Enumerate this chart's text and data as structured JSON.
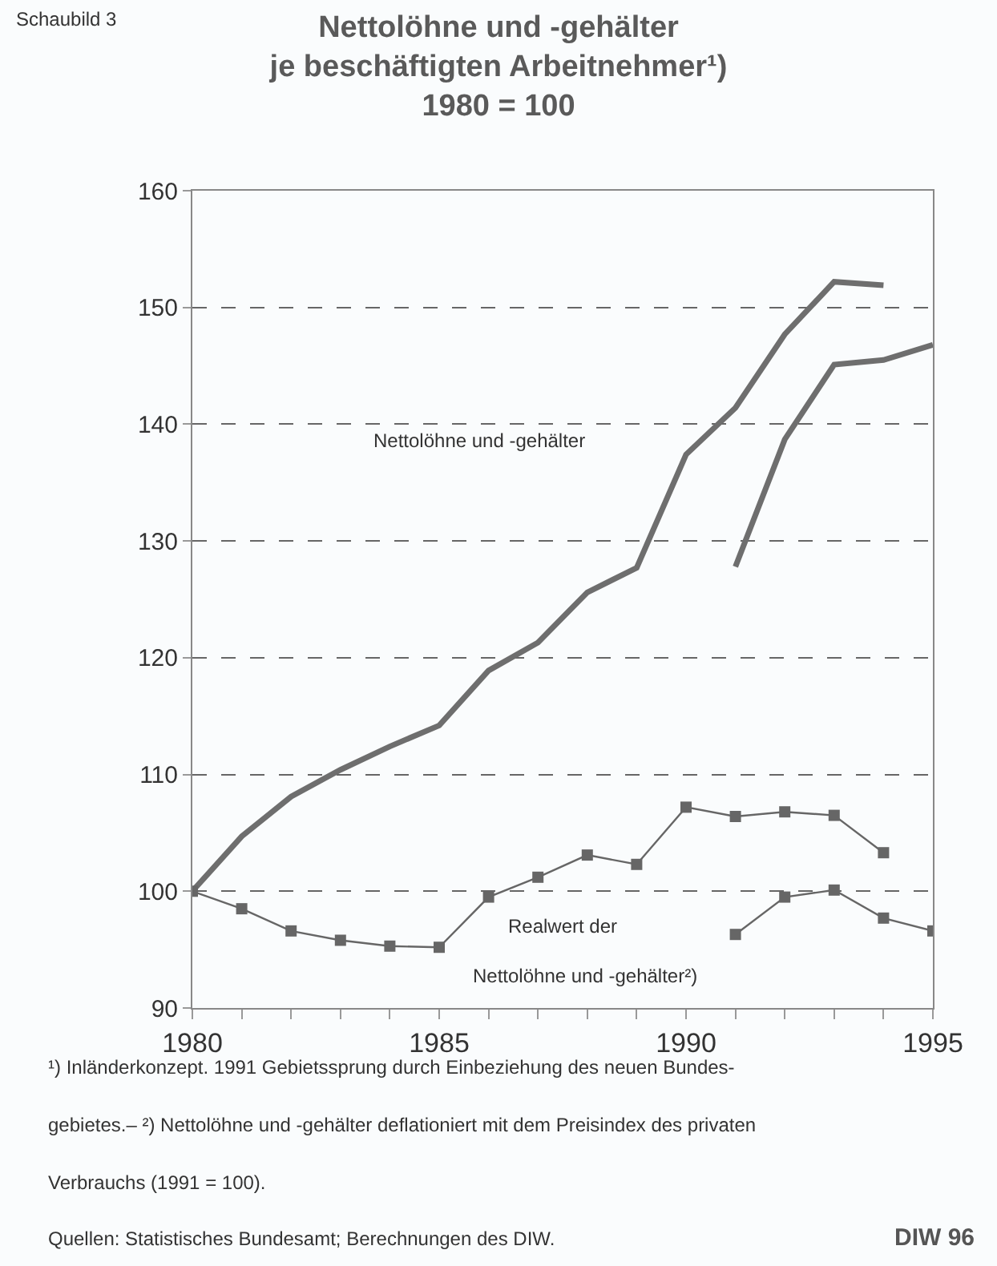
{
  "chart_data": {
    "type": "line",
    "title": "Nettolöhne und -gehälter\nje beschäftigten Arbeitnehmer¹)\n1980 = 100",
    "x": [
      1980,
      1981,
      1982,
      1983,
      1984,
      1985,
      1986,
      1987,
      1988,
      1989,
      1990,
      1991,
      1992,
      1993,
      1994,
      1995
    ],
    "series": [
      {
        "color": "#6e6e6e",
        "marker": "none",
        "values": [
          100,
          104.7,
          108.1,
          110.4,
          112.4,
          114.2,
          118.9,
          121.3,
          125.6,
          127.7,
          137.4,
          141.4,
          147.7,
          152.2,
          151.9,
          null
        ]
      },
      {
        "color": "#6e6e6e",
        "marker": "none",
        "values": [
          null,
          null,
          null,
          null,
          null,
          null,
          null,
          null,
          null,
          null,
          null,
          127.8,
          138.7,
          145.1,
          145.5,
          146.8
        ]
      },
      {
        "color": "#666666",
        "marker": "square",
        "values": [
          100,
          98.5,
          96.6,
          95.8,
          95.3,
          95.2,
          99.5,
          101.2,
          103.1,
          102.3,
          107.2,
          106.4,
          106.8,
          106.5,
          103.3,
          null
        ]
      },
      {
        "color": "#666666",
        "marker": "square",
        "values": [
          null,
          null,
          null,
          null,
          null,
          null,
          null,
          null,
          null,
          null,
          null,
          96.3,
          99.5,
          100.1,
          97.7,
          96.6
        ]
      }
    ],
    "xlim": [
      1980,
      1995
    ],
    "xticks": [
      1980,
      {
        "value": 1981,
        "label": null
      },
      {
        "value": 1982,
        "label": null
      },
      {
        "value": 1983,
        "label": null
      },
      {
        "value": 1984,
        "label": null
      },
      1985,
      {
        "value": 1986,
        "label": null
      },
      {
        "value": 1987,
        "label": null
      },
      {
        "value": 1988,
        "label": null
      },
      {
        "value": 1989,
        "label": null
      },
      1990,
      {
        "value": 1991,
        "label": null
      },
      {
        "value": 1992,
        "label": null
      },
      {
        "value": 1993,
        "label": null
      },
      {
        "value": 1994,
        "label": null
      },
      1995
    ],
    "ylim": [
      90,
      160
    ],
    "yticks": [
      90,
      100,
      110,
      120,
      130,
      140,
      150,
      160
    ],
    "grid": "y",
    "line_style": "solid",
    "annotations": [
      "Nettolöhne und -gehälter",
      "Realwert der",
      "Nettolöhne und -gehälter²)",
      "Schaubild 3",
      "¹) Inländerkonzept. 1991 Gebietssprung durch Einbeziehung des neuen Bundes-\ngebietes.– ²) Nettolöhne und -gehälter deflationiert mit dem Preisindex des privaten\nVerbrauchs (1991 = 100).",
      "Quellen: Statistisches Bundesamt; Berechnungen des DIW.",
      "DIW 96"
    ]
  }
}
